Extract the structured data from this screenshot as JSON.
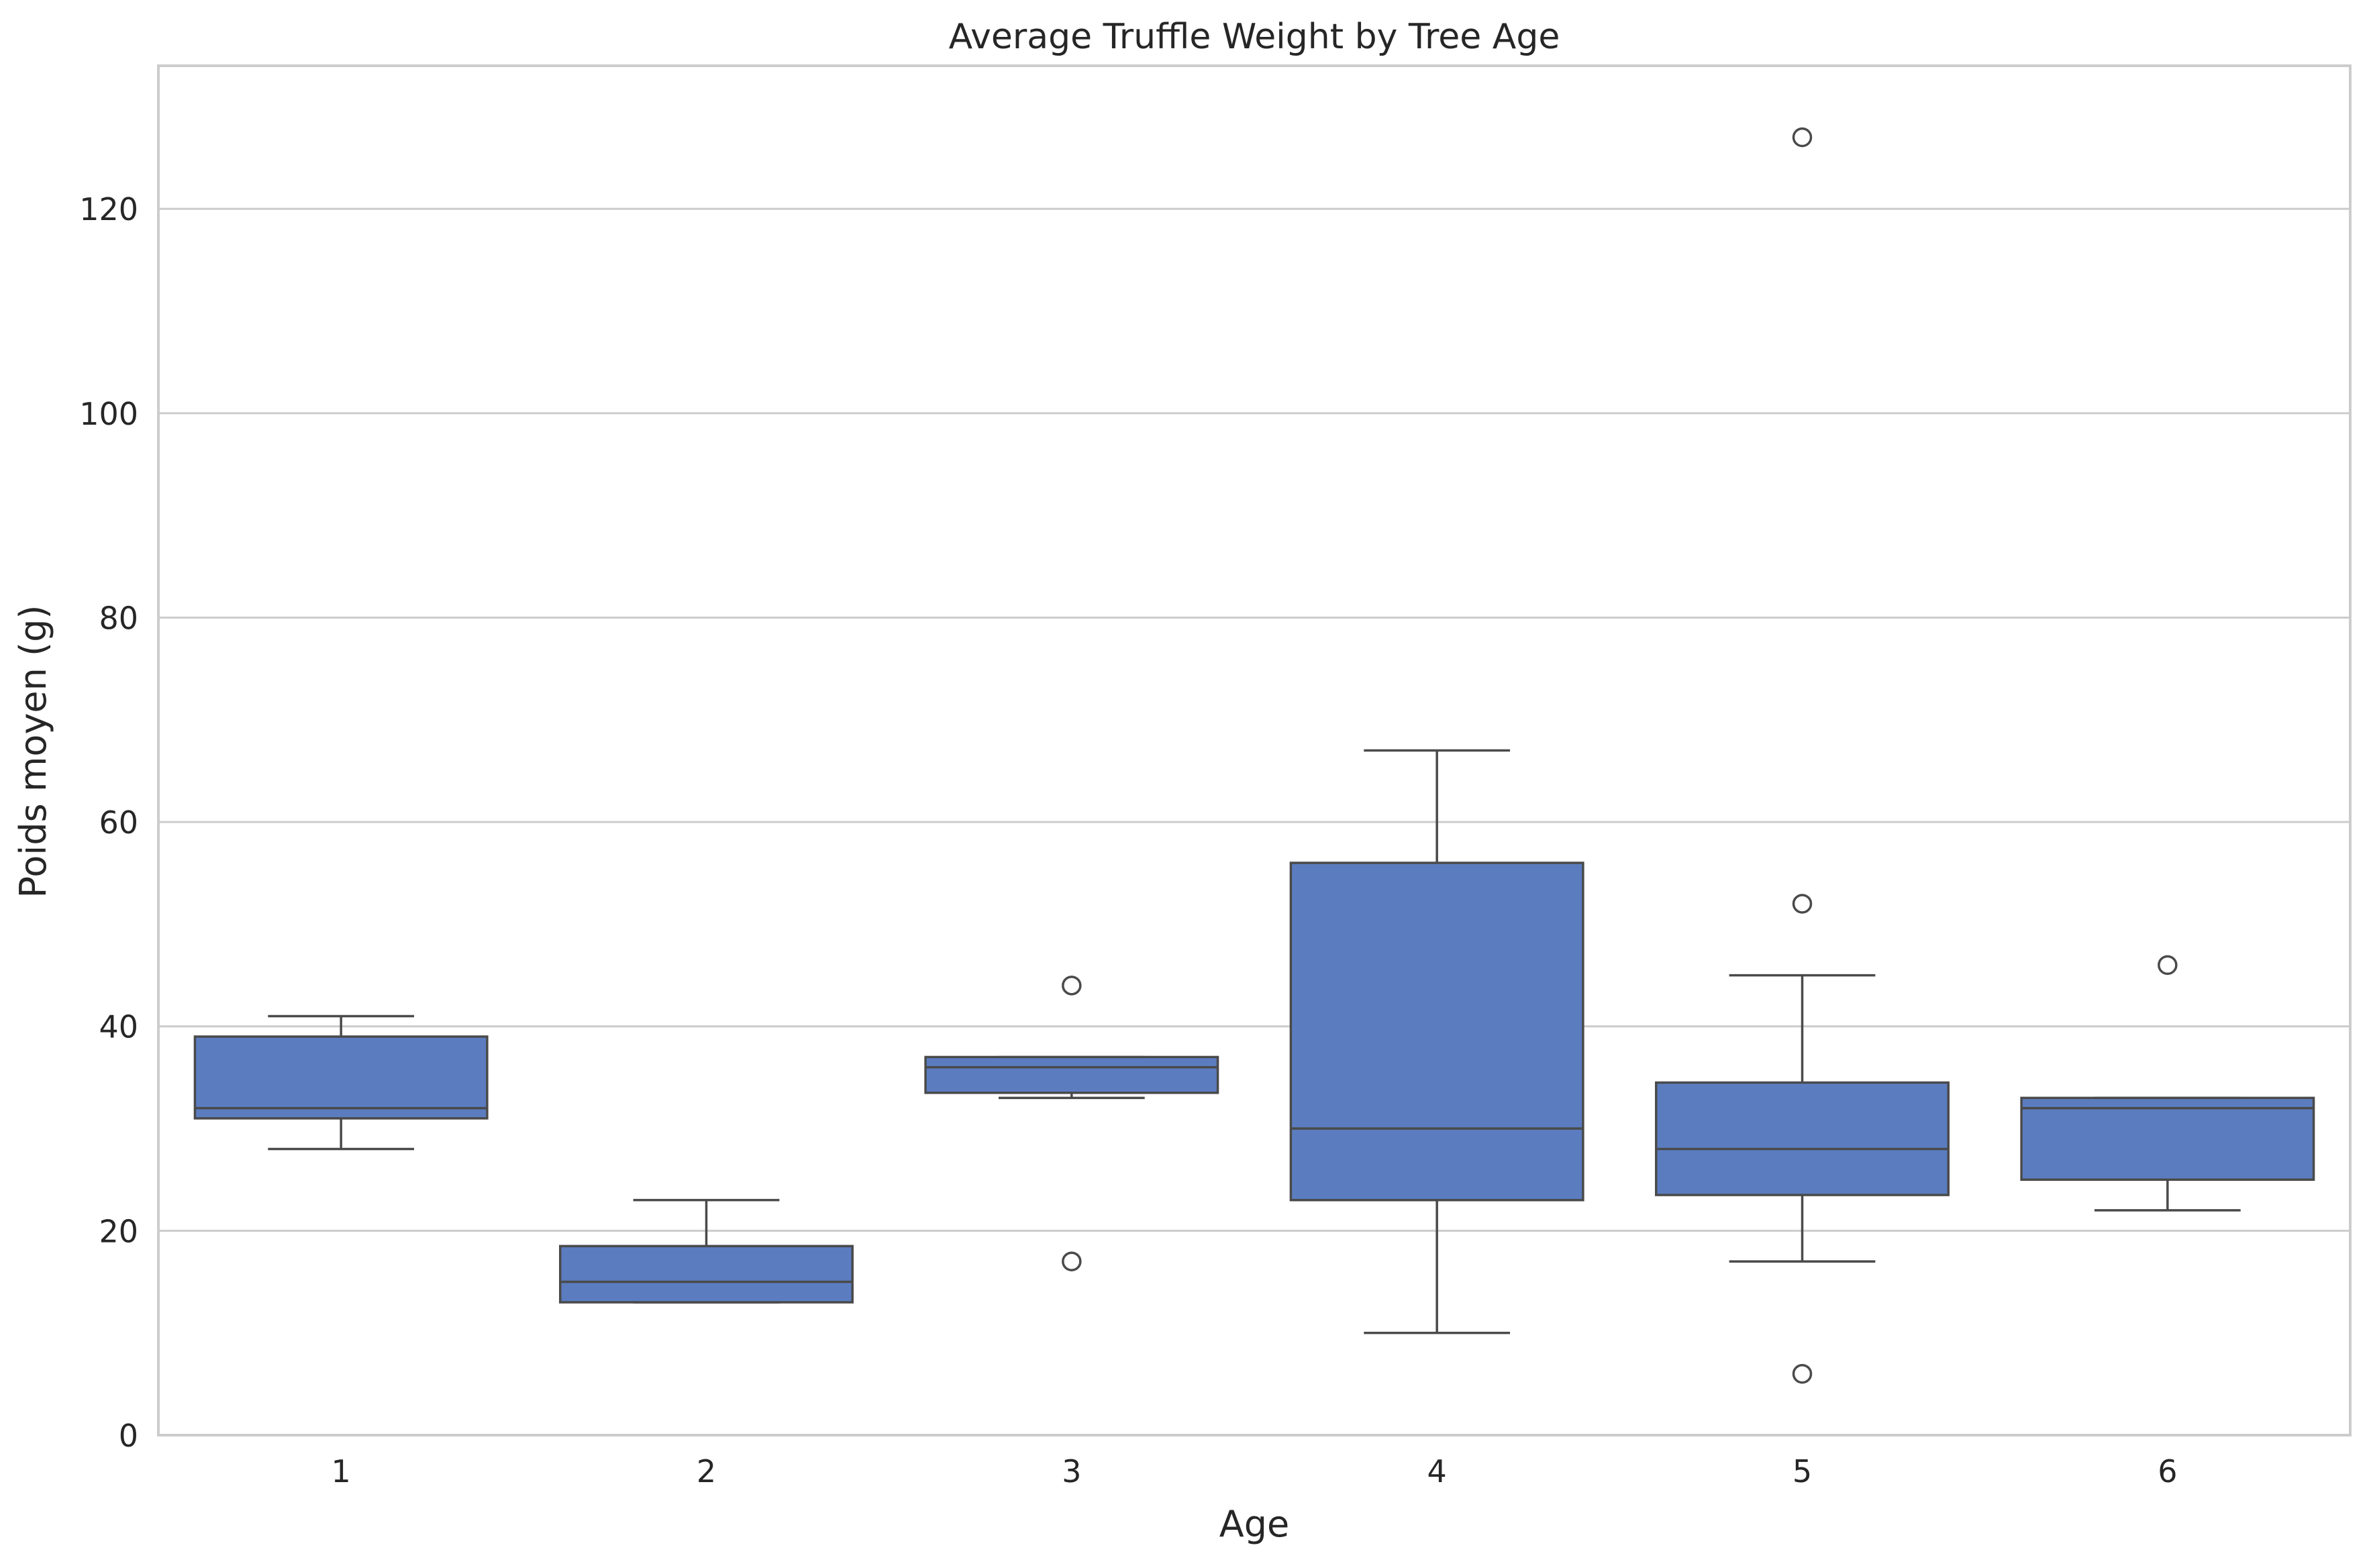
{
  "chart_data": {
    "type": "box",
    "title": "Average Truffle Weight by Tree Age",
    "xlabel": "Age",
    "ylabel": "Poids moyen (g)",
    "categories": [
      "1",
      "2",
      "3",
      "4",
      "5",
      "6"
    ],
    "ylim": [
      0,
      134
    ],
    "yticks": [
      0,
      20,
      40,
      60,
      80,
      100,
      120
    ],
    "grid": "horizontal",
    "box_color": "#5b7dc0",
    "line_color": "#4a4a4a",
    "boxes": [
      {
        "category": "1",
        "whisker_low": 28,
        "q1": 31,
        "median": 32,
        "q3": 39,
        "whisker_high": 41,
        "outliers": []
      },
      {
        "category": "2",
        "whisker_low": 13,
        "q1": 13,
        "median": 15,
        "q3": 18.5,
        "whisker_high": 23,
        "outliers": []
      },
      {
        "category": "3",
        "whisker_low": 33,
        "q1": 33.5,
        "median": 36,
        "q3": 37,
        "whisker_high": 37,
        "outliers": [
          44,
          17
        ]
      },
      {
        "category": "4",
        "whisker_low": 10,
        "q1": 23,
        "median": 30,
        "q3": 56,
        "whisker_high": 67,
        "outliers": []
      },
      {
        "category": "5",
        "whisker_low": 17,
        "q1": 23.5,
        "median": 28,
        "q3": 34.5,
        "whisker_high": 45,
        "outliers": [
          127,
          52,
          6
        ]
      },
      {
        "category": "6",
        "whisker_low": 22,
        "q1": 25,
        "median": 32,
        "q3": 33,
        "whisker_high": 33,
        "outliers": [
          46
        ]
      }
    ]
  }
}
